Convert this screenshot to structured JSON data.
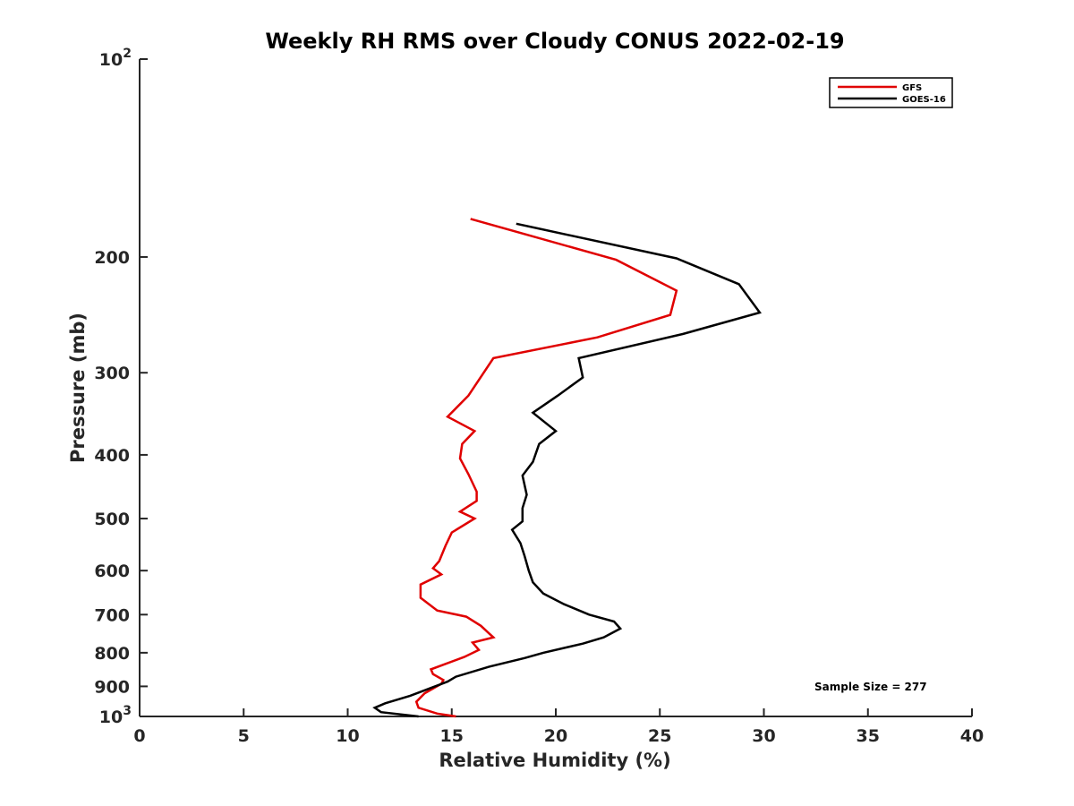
{
  "chart_data": {
    "type": "line",
    "title": "Weekly RH RMS over Cloudy CONUS 2022-02-19",
    "xlabel": "Relative Humidity (%)",
    "ylabel": "Pressure (mb)",
    "xlim": [
      0,
      40
    ],
    "ylim": [
      100,
      1000
    ],
    "y_scale": "log",
    "y_reversed": true,
    "x_ticks": [
      0,
      5,
      10,
      15,
      20,
      25,
      30,
      35,
      40
    ],
    "x_tick_labels": [
      "0",
      "5",
      "10",
      "15",
      "20",
      "25",
      "30",
      "35",
      "40"
    ],
    "y_ticks": [
      200,
      300,
      400,
      500,
      600,
      700,
      800,
      900
    ],
    "y_tick_labels": [
      "200",
      "300",
      "400",
      "500",
      "600",
      "700",
      "800",
      "900"
    ],
    "y_extreme_labels": [
      {
        "value": 100,
        "base": "10",
        "exp": "2"
      },
      {
        "value": 1000,
        "base": "10",
        "exp": "3"
      }
    ],
    "grid": false,
    "legend_position": "top-right",
    "series": [
      {
        "name": "GFS",
        "color": "#e00000",
        "points": [
          [
            15.9,
            175
          ],
          [
            22.9,
            202
          ],
          [
            25.8,
            225
          ],
          [
            25.5,
            245
          ],
          [
            22.0,
            265
          ],
          [
            17.0,
            285
          ],
          [
            15.8,
            325
          ],
          [
            14.8,
            350
          ],
          [
            16.1,
            368
          ],
          [
            15.5,
            385
          ],
          [
            15.4,
            405
          ],
          [
            15.8,
            428
          ],
          [
            16.2,
            455
          ],
          [
            16.2,
            470
          ],
          [
            15.4,
            488
          ],
          [
            16.1,
            500
          ],
          [
            15.0,
            525
          ],
          [
            14.7,
            550
          ],
          [
            14.4,
            580
          ],
          [
            14.1,
            595
          ],
          [
            14.5,
            608
          ],
          [
            13.5,
            630
          ],
          [
            13.5,
            660
          ],
          [
            14.3,
            690
          ],
          [
            15.7,
            705
          ],
          [
            16.4,
            728
          ],
          [
            16.8,
            748
          ],
          [
            17.0,
            758
          ],
          [
            16.0,
            772
          ],
          [
            16.3,
            792
          ],
          [
            15.6,
            812
          ],
          [
            14.0,
            848
          ],
          [
            14.1,
            862
          ],
          [
            14.6,
            880
          ],
          [
            14.5,
            892
          ],
          [
            13.7,
            922
          ],
          [
            13.3,
            950
          ],
          [
            13.4,
            970
          ],
          [
            14.3,
            990
          ],
          [
            15.2,
            1000
          ]
        ]
      },
      {
        "name": "GOES-16",
        "color": "#000000",
        "points": [
          [
            18.1,
            178
          ],
          [
            25.8,
            201
          ],
          [
            28.8,
            220
          ],
          [
            29.8,
            243
          ],
          [
            26.1,
            262
          ],
          [
            21.1,
            285
          ],
          [
            21.3,
            305
          ],
          [
            20.1,
            325
          ],
          [
            18.9,
            345
          ],
          [
            20.0,
            368
          ],
          [
            19.2,
            385
          ],
          [
            18.9,
            410
          ],
          [
            18.4,
            430
          ],
          [
            18.6,
            460
          ],
          [
            18.4,
            482
          ],
          [
            18.4,
            505
          ],
          [
            17.9,
            520
          ],
          [
            18.3,
            545
          ],
          [
            18.5,
            570
          ],
          [
            18.7,
            600
          ],
          [
            18.9,
            625
          ],
          [
            19.4,
            650
          ],
          [
            20.4,
            675
          ],
          [
            21.6,
            700
          ],
          [
            22.8,
            717
          ],
          [
            23.1,
            735
          ],
          [
            22.3,
            758
          ],
          [
            21.3,
            775
          ],
          [
            19.4,
            800
          ],
          [
            18.5,
            815
          ],
          [
            16.8,
            840
          ],
          [
            15.2,
            870
          ],
          [
            14.8,
            885
          ],
          [
            13.0,
            930
          ],
          [
            11.8,
            955
          ],
          [
            11.3,
            970
          ],
          [
            11.6,
            985
          ],
          [
            13.4,
            1000
          ]
        ]
      }
    ],
    "annotations": [
      {
        "text": "Sample Size = 277",
        "x": 32.4,
        "y": 900
      }
    ]
  }
}
